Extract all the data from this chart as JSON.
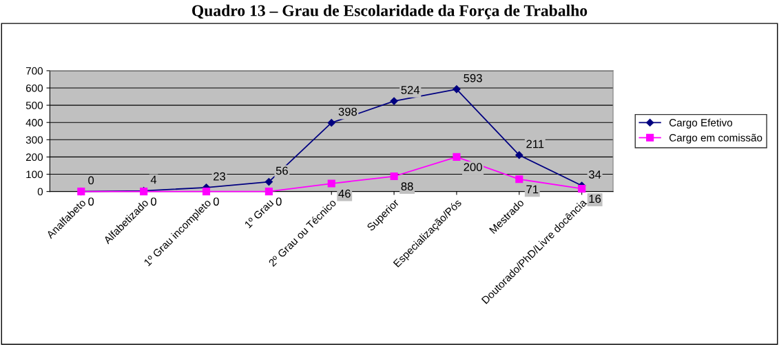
{
  "chart_data": {
    "type": "line",
    "title": "Quadro 13 – Grau de Escolaridade da Força de Trabalho",
    "categories": [
      "Analfabeto",
      "Alfabetizado",
      "1º Grau incompleto",
      "1º Grau",
      "2º Grau ou Técnico",
      "Superior",
      "Especialização/Pós",
      "Mestrado",
      "Doutorado/PhD/Livre docência"
    ],
    "series": [
      {
        "name": "Cargo Efetivo",
        "color": "#000080",
        "marker": "diamond",
        "values": [
          0,
          4,
          23,
          56,
          398,
          524,
          593,
          211,
          34
        ]
      },
      {
        "name": "Cargo em comissão",
        "color": "#ff00ff",
        "marker": "square",
        "values": [
          0,
          0,
          0,
          0,
          46,
          88,
          200,
          71,
          16
        ]
      }
    ],
    "ylim": [
      0,
      700
    ],
    "yticks": [
      0,
      100,
      200,
      300,
      400,
      500,
      600,
      700
    ],
    "grid": "y",
    "legend": "right",
    "data_labels": true
  }
}
